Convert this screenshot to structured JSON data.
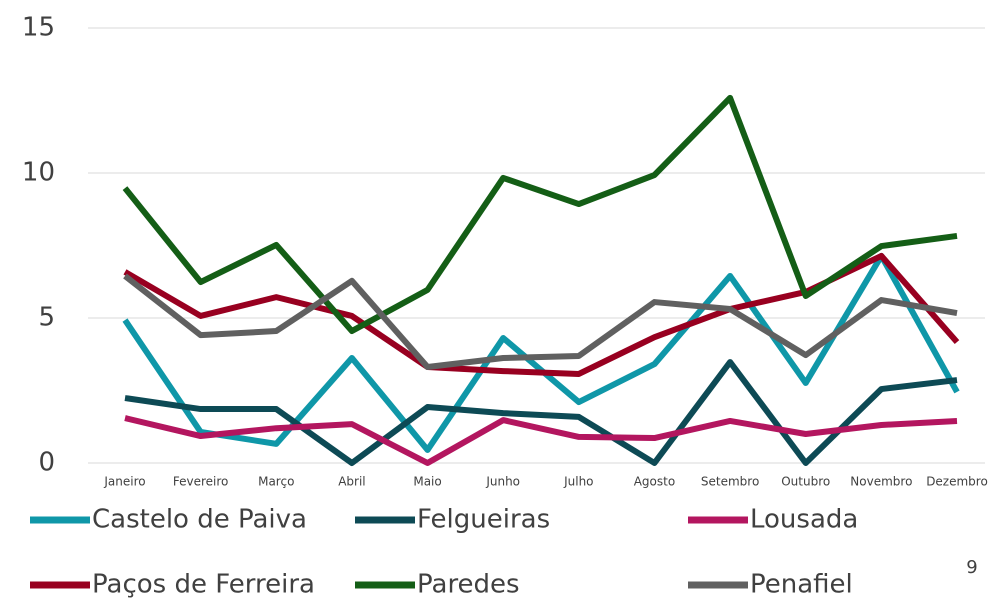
{
  "chart_data": {
    "type": "line",
    "categories": [
      "Janeiro",
      "Fevereiro",
      "Março",
      "Abril",
      "Maio",
      "Junho",
      "Julho",
      "Agosto",
      "Setembro",
      "Outubro",
      "Novembro",
      "Dezembro"
    ],
    "series": [
      {
        "name": "Castelo de Paiva",
        "color": "#0f97a8",
        "values": [
          4.93,
          1.07,
          0.66,
          3.62,
          0.45,
          4.31,
          2.1,
          3.41,
          6.45,
          2.76,
          7.14,
          2.45
        ]
      },
      {
        "name": "Felgueiras",
        "color": "#0d4a55",
        "values": [
          2.24,
          1.86,
          1.86,
          0,
          1.93,
          1.72,
          1.59,
          0,
          3.48,
          0,
          2.55,
          2.86
        ]
      },
      {
        "name": "Lousada",
        "color": "#b3165f",
        "values": [
          1.55,
          0.93,
          1.2,
          1.34,
          0,
          1.48,
          0.9,
          0.86,
          1.45,
          1.0,
          1.31,
          1.45
        ]
      },
      {
        "name": "Paços de Ferreira",
        "color": "#980020",
        "values": [
          6.59,
          5.07,
          5.72,
          5.07,
          3.31,
          3.17,
          3.07,
          4.34,
          5.31,
          5.9,
          7.14,
          4.17
        ]
      },
      {
        "name": "Paredes",
        "color": "#145e16",
        "values": [
          9.48,
          6.24,
          7.52,
          4.55,
          5.97,
          9.83,
          8.93,
          9.93,
          12.59,
          5.76,
          7.48,
          7.83
        ]
      },
      {
        "name": "Penafiel",
        "color": "#606060",
        "values": [
          6.45,
          4.41,
          4.55,
          6.28,
          3.31,
          3.62,
          3.69,
          5.55,
          5.31,
          3.72,
          5.62,
          5.17
        ]
      }
    ],
    "ylim": [
      0,
      15
    ],
    "yticks": [
      0,
      5,
      10,
      15
    ],
    "grid": true,
    "legend": "bottom"
  },
  "page_number": "9"
}
